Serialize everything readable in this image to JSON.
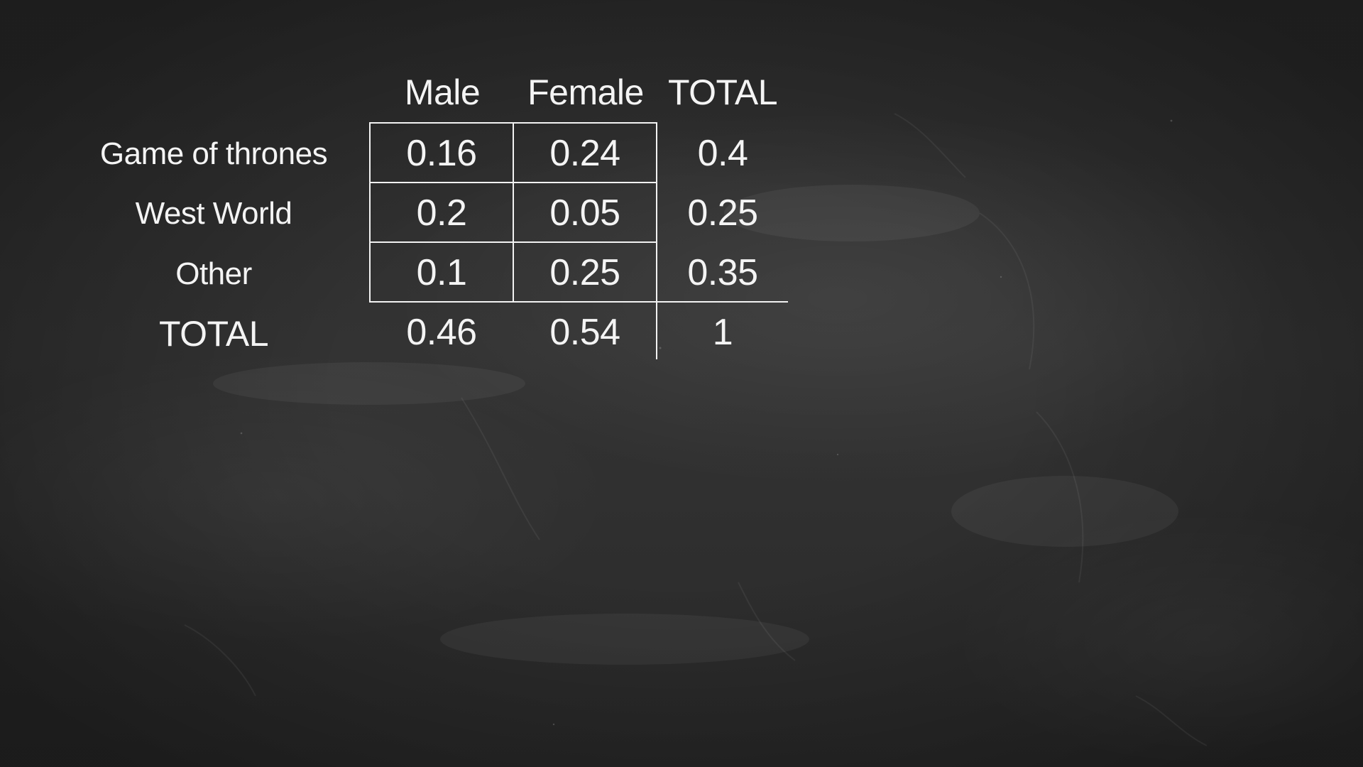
{
  "table": {
    "column_headers": [
      "Male",
      "Female",
      "TOTAL"
    ],
    "rows": [
      {
        "label": "Game of thrones",
        "male": "0.16",
        "female": "0.24",
        "total": "0.4"
      },
      {
        "label": "West World",
        "male": "0.2",
        "female": "0.05",
        "total": "0.25"
      },
      {
        "label": "Other",
        "male": "0.1",
        "female": "0.25",
        "total": "0.35"
      },
      {
        "label": "TOTAL",
        "male": "0.46",
        "female": "0.54",
        "total": "1"
      }
    ]
  },
  "colors": {
    "background": "#2e2e2e",
    "chalk": "#f4f4f4"
  }
}
